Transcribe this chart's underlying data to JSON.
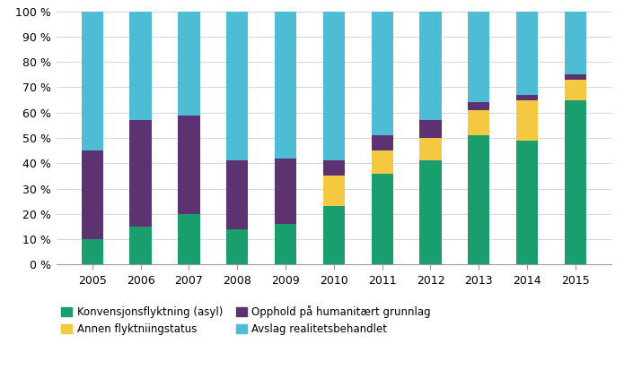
{
  "years": [
    2005,
    2006,
    2007,
    2008,
    2009,
    2010,
    2011,
    2012,
    2013,
    2014,
    2015
  ],
  "konvensjons": [
    10,
    15,
    20,
    14,
    16,
    23,
    36,
    41,
    51,
    49,
    65
  ],
  "annen": [
    0,
    0,
    0,
    0,
    0,
    12,
    9,
    9,
    10,
    16,
    8
  ],
  "opphold": [
    35,
    42,
    39,
    27,
    26,
    6,
    6,
    7,
    3,
    2,
    2
  ],
  "avslag": [
    55,
    43,
    41,
    59,
    58,
    59,
    49,
    43,
    36,
    33,
    25
  ],
  "colors": {
    "konvensjons": "#1a9e6e",
    "annen": "#f5c842",
    "opphold": "#5c3370",
    "avslag": "#4dbcd4"
  },
  "labels": {
    "konvensjons": "Konvensjonsflyktning (asyl)",
    "annen": "Annen flyktniingstatus",
    "opphold": "Opphold på humanitært grunnlag",
    "avslag": "Avslag realitetsbehandlet"
  },
  "ylim": [
    0,
    100
  ],
  "yticks": [
    0,
    10,
    20,
    30,
    40,
    50,
    60,
    70,
    80,
    90,
    100
  ],
  "ytick_labels": [
    "0 %",
    "10 %",
    "20 %",
    "30 %",
    "40 %",
    "50 %",
    "60 %",
    "70 %",
    "80 %",
    "90 %",
    "100 %"
  ],
  "background_color": "#ffffff",
  "bar_width": 0.45
}
